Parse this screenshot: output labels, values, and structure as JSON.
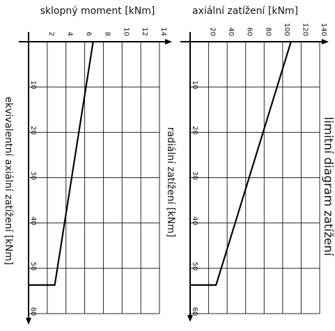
{
  "title": "limitní diagram zatížení",
  "chart_data": [
    {
      "type": "line",
      "xlabel": "sklopný moment [kNm]",
      "ylabel": "ekvivalentní axiální zatížení [kNm]",
      "xlim": [
        0,
        14
      ],
      "ylim": [
        0,
        60
      ],
      "x_ticks": [
        "2",
        "4",
        "6",
        "8",
        "10",
        "12",
        "14"
      ],
      "y_ticks": [
        "10",
        "20",
        "30",
        "40",
        "50",
        "60"
      ],
      "grid": true,
      "x": [
        6.9,
        2.8,
        0
      ],
      "y": [
        0,
        53.7,
        53.7
      ]
    },
    {
      "type": "line",
      "xlabel": "axiální zatížení [kNm]",
      "ylabel": "radiální zatížení [kNm]",
      "xlim": [
        0,
        140
      ],
      "ylim": [
        0,
        60
      ],
      "x_ticks": [
        "20",
        "40",
        "60",
        "80",
        "100",
        "120",
        "140"
      ],
      "y_ticks": [
        "10",
        "20",
        "30",
        "40",
        "50",
        "60"
      ],
      "grid": true,
      "x": [
        109,
        28,
        0
      ],
      "y": [
        0,
        53.7,
        53.7
      ]
    }
  ],
  "colors": {
    "line": "#000000",
    "grid": "#222222",
    "text": "#111111"
  }
}
